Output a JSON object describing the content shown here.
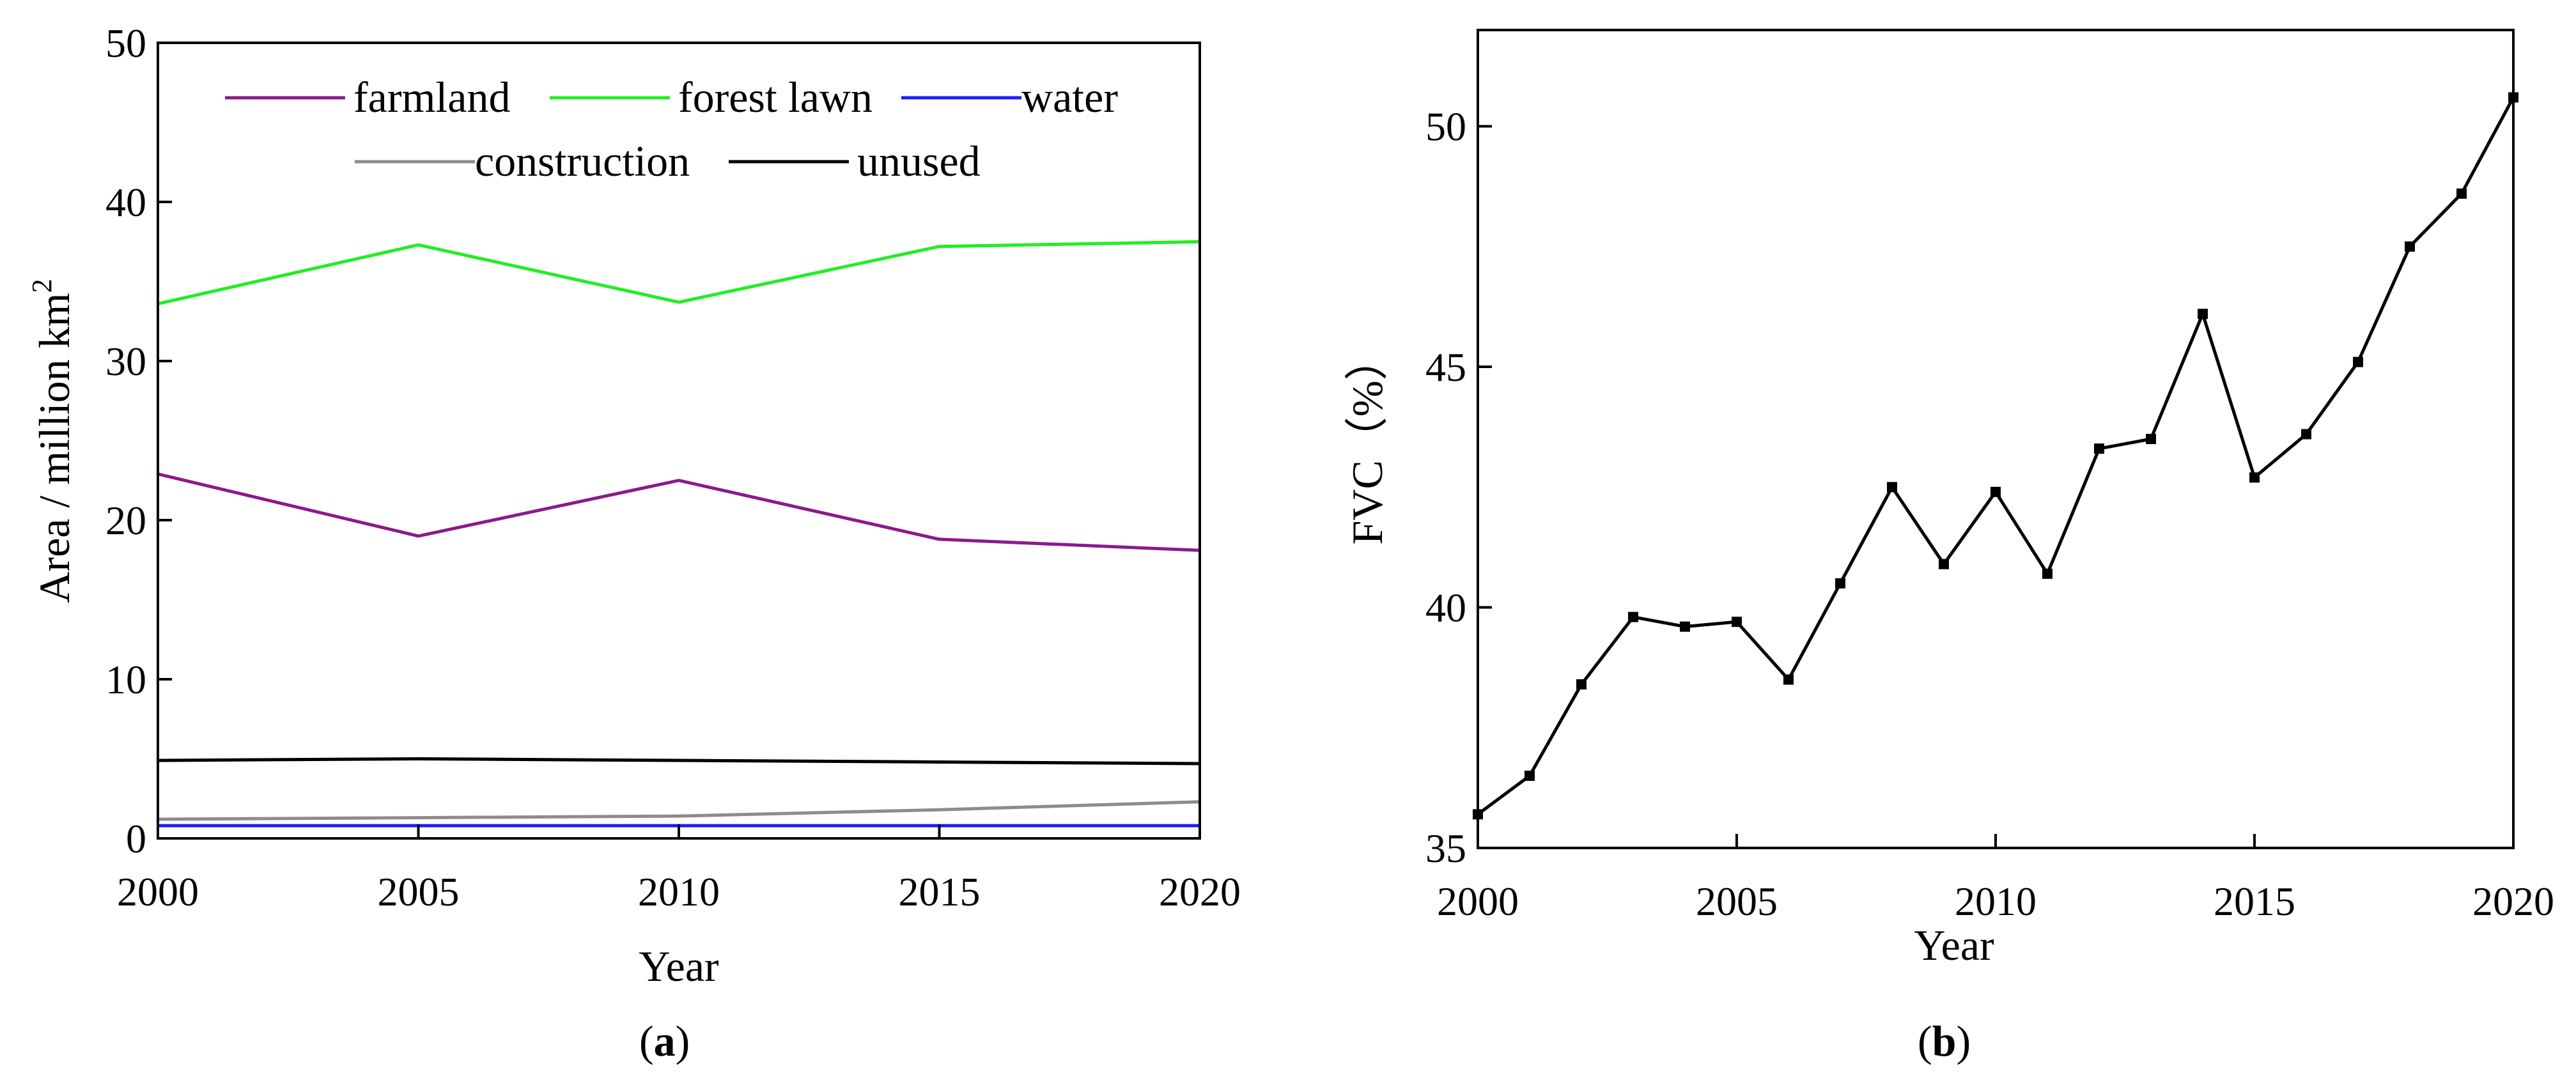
{
  "chart_data": [
    {
      "type": "line",
      "panel_label": "(a)",
      "panel_letter": "a",
      "xlabel": "Year",
      "ylabel": "Area / million km",
      "ylabel_superscript": "2",
      "x": [
        2000,
        2005,
        2010,
        2015,
        2020
      ],
      "xlim": [
        2000,
        2020
      ],
      "ylim": [
        0,
        50
      ],
      "xticks": [
        2000,
        2005,
        2010,
        2015,
        2020
      ],
      "yticks": [
        0,
        10,
        20,
        30,
        40,
        50
      ],
      "legend_position": "top",
      "series": [
        {
          "name": "farmland",
          "color": "#8b1a8b",
          "values": [
            22.9,
            19.0,
            22.5,
            18.8,
            18.1
          ]
        },
        {
          "name": "forest lawn",
          "color": "#22ee22",
          "values": [
            33.6,
            37.3,
            33.7,
            37.2,
            37.5
          ]
        },
        {
          "name": "water",
          "color": "#1a1aff",
          "values": [
            0.8,
            0.8,
            0.8,
            0.8,
            0.8
          ]
        },
        {
          "name": "construction",
          "color": "#8c8c8c",
          "values": [
            1.2,
            1.3,
            1.4,
            1.8,
            2.3
          ]
        },
        {
          "name": "unused",
          "color": "#000000",
          "values": [
            4.9,
            5.0,
            4.9,
            4.8,
            4.7
          ]
        }
      ]
    },
    {
      "type": "line",
      "panel_label": "(b)",
      "panel_letter": "b",
      "xlabel": "Year",
      "ylabel": "FVC（%）",
      "xlim": [
        2000,
        2020
      ],
      "ylim": [
        35,
        52
      ],
      "xticks": [
        2000,
        2005,
        2010,
        2015,
        2020
      ],
      "yticks": [
        35,
        40,
        45,
        50
      ],
      "series": [
        {
          "name": "FVC",
          "color": "#000000",
          "marker": "square",
          "x": [
            2000,
            2001,
            2002,
            2003,
            2004,
            2005,
            2006,
            2007,
            2008,
            2009,
            2010,
            2011,
            2012,
            2013,
            2014,
            2015,
            2016,
            2017,
            2018,
            2019,
            2020
          ],
          "values": [
            35.7,
            36.5,
            38.4,
            39.8,
            39.6,
            39.7,
            38.5,
            40.5,
            42.5,
            40.9,
            42.4,
            40.7,
            43.3,
            43.5,
            46.1,
            42.7,
            43.6,
            45.1,
            47.5,
            48.6,
            50.6
          ]
        }
      ]
    }
  ]
}
